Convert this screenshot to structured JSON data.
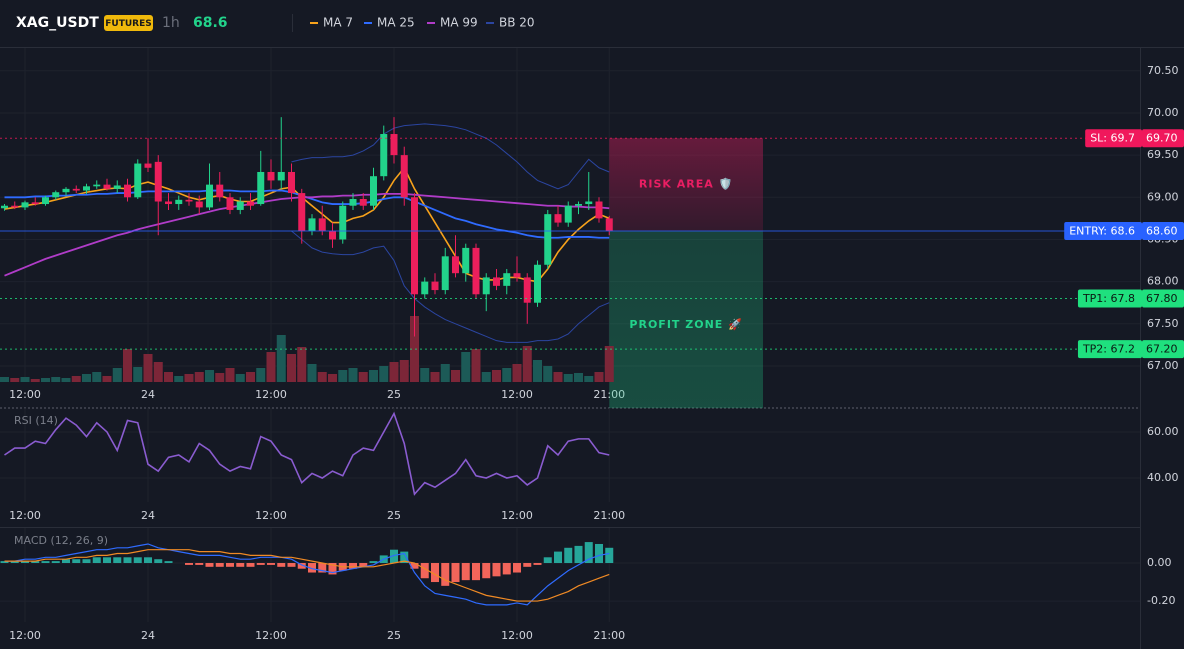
{
  "header": {
    "symbol": "XAG_USDT",
    "badge": "FUTURES",
    "interval": "1h",
    "price": 68.6
  },
  "chart_data": [
    {
      "type": "candlestick",
      "categories": [
        null,
        null,
        "12:00",
        null,
        null,
        null,
        null,
        null,
        null,
        null,
        null,
        null,
        null,
        null,
        "24",
        null,
        null,
        null,
        null,
        null,
        null,
        null,
        null,
        null,
        null,
        null,
        "12:00",
        null,
        null,
        null,
        null,
        null,
        null,
        null,
        null,
        null,
        null,
        null,
        "25",
        null,
        null,
        null,
        null,
        null,
        null,
        null,
        null,
        null,
        null,
        null,
        "12:00",
        null,
        null,
        null,
        null,
        null,
        null,
        null,
        null,
        "21:00"
      ],
      "open": [
        68.87,
        68.9,
        68.88,
        68.94,
        68.92,
        69.0,
        69.06,
        69.1,
        69.08,
        69.13,
        69.15,
        69.1,
        69.15,
        69.0,
        69.4,
        69.42,
        68.95,
        68.92,
        68.97,
        68.95,
        68.88,
        69.15,
        69.0,
        68.85,
        68.95,
        68.92,
        69.3,
        69.2,
        69.3,
        69.05,
        68.6,
        68.75,
        68.6,
        68.5,
        68.9,
        68.98,
        68.9,
        69.25,
        69.75,
        69.5,
        69.0,
        67.85,
        68.0,
        67.9,
        68.3,
        68.1,
        68.4,
        67.85,
        68.05,
        67.95,
        68.1,
        68.05,
        67.75,
        68.2,
        68.8,
        68.7,
        68.9,
        68.92,
        68.95,
        68.75
      ],
      "high": [
        68.92,
        68.95,
        68.96,
        69.0,
        69.02,
        69.08,
        69.12,
        69.14,
        69.16,
        69.2,
        69.22,
        69.2,
        69.22,
        69.45,
        69.7,
        69.5,
        69.05,
        69.02,
        69.05,
        69.02,
        69.4,
        69.3,
        69.05,
        69.0,
        69.05,
        69.55,
        69.45,
        69.95,
        69.4,
        69.1,
        68.8,
        68.9,
        68.7,
        68.95,
        69.05,
        69.05,
        69.35,
        69.85,
        69.95,
        69.6,
        69.05,
        68.05,
        68.1,
        68.4,
        68.55,
        68.45,
        68.45,
        68.1,
        68.15,
        68.15,
        68.3,
        68.1,
        68.25,
        68.85,
        68.9,
        68.95,
        68.95,
        69.3,
        69.0,
        68.78
      ],
      "low": [
        68.84,
        68.86,
        68.85,
        68.9,
        68.9,
        68.97,
        69.02,
        69.05,
        69.04,
        69.1,
        69.08,
        69.05,
        68.95,
        68.98,
        69.3,
        68.55,
        68.85,
        68.85,
        68.9,
        68.8,
        68.85,
        68.95,
        68.8,
        68.8,
        68.85,
        68.9,
        69.1,
        69.1,
        68.95,
        68.45,
        68.55,
        68.55,
        68.4,
        68.45,
        68.85,
        68.85,
        68.85,
        69.2,
        69.4,
        68.9,
        67.35,
        67.8,
        67.85,
        67.85,
        68.05,
        68.0,
        67.8,
        67.65,
        67.9,
        67.85,
        68.0,
        67.5,
        67.7,
        68.15,
        68.65,
        68.65,
        68.8,
        68.85,
        68.7,
        68.55
      ],
      "close": [
        68.9,
        68.88,
        68.94,
        68.92,
        69.0,
        69.06,
        69.1,
        69.08,
        69.13,
        69.15,
        69.1,
        69.14,
        69.0,
        69.4,
        69.35,
        68.95,
        68.92,
        68.97,
        68.95,
        68.88,
        69.15,
        69.0,
        68.85,
        68.95,
        68.9,
        69.3,
        69.2,
        69.3,
        69.05,
        68.6,
        68.75,
        68.6,
        68.5,
        68.9,
        68.98,
        68.9,
        69.25,
        69.75,
        69.5,
        69.0,
        67.85,
        68.0,
        67.9,
        68.3,
        68.1,
        68.4,
        67.85,
        68.05,
        67.95,
        68.1,
        68.05,
        67.75,
        68.2,
        68.8,
        68.7,
        68.9,
        68.92,
        68.95,
        68.75,
        68.6
      ],
      "up_color": "#22d38b",
      "down_color": "#ec1f5c",
      "volume": [
        5,
        4,
        5,
        3,
        4,
        5,
        4,
        6,
        8,
        10,
        6,
        14,
        33,
        15,
        28,
        20,
        10,
        6,
        8,
        10,
        12,
        9,
        14,
        8,
        10,
        14,
        30,
        47,
        28,
        35,
        18,
        10,
        8,
        12,
        14,
        10,
        12,
        16,
        20,
        22,
        66,
        14,
        10,
        18,
        12,
        30,
        33,
        10,
        12,
        14,
        18,
        36,
        22,
        16,
        10,
        8,
        9,
        6,
        10,
        36
      ],
      "volume_lim": [
        0,
        100
      ],
      "volume_up_color": "#1c5a57",
      "volume_down_color": "#7c2638",
      "series": [
        {
          "name": "MA 7",
          "color": "#f7a21b",
          "values": [
            68.86,
            68.88,
            68.9,
            68.92,
            68.94,
            68.97,
            69.0,
            69.03,
            69.06,
            69.08,
            69.1,
            69.11,
            69.1,
            69.15,
            69.18,
            69.14,
            69.1,
            69.05,
            69.0,
            68.97,
            69.0,
            69.02,
            68.98,
            68.95,
            68.95,
            69.0,
            69.05,
            69.1,
            69.12,
            69.0,
            68.9,
            68.8,
            68.7,
            68.7,
            68.75,
            68.78,
            68.85,
            69.0,
            69.2,
            69.35,
            69.1,
            68.9,
            68.7,
            68.5,
            68.3,
            68.1,
            68.05,
            68.02,
            68.02,
            68.05,
            68.05,
            68.02,
            68.0,
            68.15,
            68.35,
            68.5,
            68.62,
            68.72,
            68.8,
            68.75
          ]
        },
        {
          "name": "MA 25",
          "color": "#2f6bff",
          "values": [
            69,
            69,
            69,
            69.01,
            69.01,
            69.02,
            69.02,
            69.03,
            69.03,
            69.04,
            69.04,
            69.05,
            69.05,
            69.06,
            69.07,
            69.07,
            69.07,
            69.07,
            69.07,
            69.07,
            69.08,
            69.08,
            69.08,
            69.07,
            69.07,
            69.07,
            69.08,
            69.08,
            69.06,
            69.02,
            68.98,
            68.94,
            68.92,
            68.92,
            68.92,
            68.93,
            68.95,
            68.98,
            69,
            69,
            68.95,
            68.9,
            68.85,
            68.8,
            68.75,
            68.72,
            68.68,
            68.65,
            68.62,
            68.6,
            68.58,
            68.55,
            68.53,
            68.52,
            68.52,
            68.53,
            68.53,
            68.53,
            68.52,
            68.52
          ]
        },
        {
          "name": "MA 99",
          "color": "#b03cc8",
          "values": [
            68.07,
            68.12,
            68.17,
            68.22,
            68.27,
            68.31,
            68.35,
            68.39,
            68.43,
            68.47,
            68.51,
            68.55,
            68.58,
            68.62,
            68.65,
            68.68,
            68.71,
            68.74,
            68.77,
            68.8,
            68.83,
            68.86,
            68.88,
            68.9,
            68.92,
            68.94,
            68.96,
            68.98,
            68.99,
            69,
            69,
            69.01,
            69.01,
            69.02,
            69.02,
            69.03,
            69.03,
            69.04,
            69.04,
            69.04,
            69.03,
            69.02,
            69.01,
            69,
            68.99,
            68.98,
            68.97,
            68.96,
            68.95,
            68.94,
            68.93,
            68.92,
            68.91,
            68.9,
            68.9,
            68.89,
            68.89,
            68.88,
            68.88,
            68.87
          ]
        },
        {
          "name": "BB 20",
          "color": "#2b45a0",
          "upper": [
            null,
            null,
            null,
            null,
            null,
            null,
            null,
            null,
            null,
            null,
            null,
            null,
            null,
            null,
            null,
            null,
            null,
            null,
            null,
            null,
            null,
            null,
            null,
            null,
            null,
            null,
            null,
            null,
            69.42,
            69.45,
            69.47,
            69.47,
            69.48,
            69.48,
            69.5,
            69.55,
            69.62,
            69.75,
            69.82,
            69.85,
            69.86,
            69.87,
            69.86,
            69.85,
            69.83,
            69.8,
            69.75,
            69.7,
            69.62,
            69.52,
            69.42,
            69.3,
            69.2,
            69.15,
            69.1,
            69.15,
            69.3,
            69.45,
            69.35,
            69.3
          ],
          "lower": [
            null,
            null,
            null,
            null,
            null,
            null,
            null,
            null,
            null,
            null,
            null,
            null,
            null,
            null,
            null,
            null,
            null,
            null,
            null,
            null,
            null,
            null,
            null,
            null,
            null,
            null,
            null,
            null,
            68.6,
            68.5,
            68.4,
            68.35,
            68.33,
            68.32,
            68.32,
            68.35,
            68.4,
            68.42,
            68.25,
            67.95,
            67.8,
            67.7,
            67.62,
            67.55,
            67.5,
            67.45,
            67.4,
            67.35,
            67.3,
            67.28,
            67.28,
            67.28,
            67.3,
            67.3,
            67.32,
            67.38,
            67.5,
            67.6,
            67.7,
            67.75
          ]
        }
      ],
      "ylim": [
        66.81,
        70.77
      ],
      "yticks": [
        {
          "value": 67,
          "label": "67.00"
        },
        {
          "value": 67.5,
          "label": "67.50"
        },
        {
          "value": 68,
          "label": "68.00"
        },
        {
          "value": 68.5,
          "label": "68.50"
        },
        {
          "value": 69,
          "label": "69.00"
        },
        {
          "value": 69.5,
          "label": "69.50"
        },
        {
          "value": 70,
          "label": "70.00"
        },
        {
          "value": 70.5,
          "label": "70.50"
        }
      ],
      "grid": true,
      "zones": [
        {
          "label": "RISK AREA 🛡️",
          "from": 69.7,
          "to": 68.6,
          "x_from": 59,
          "x_to": 74,
          "color": "#e91e63"
        },
        {
          "label": "PROFIT ZONE 🚀",
          "from": 68.6,
          "to": 66.5,
          "x_from": 59,
          "x_to": 74,
          "color": "#22d38b"
        }
      ],
      "levels": [
        {
          "label": "SL: 69.7",
          "value": 69.7,
          "price_label": "69.70",
          "color": "#f0185c",
          "text_color": "#ffffff",
          "dashed": true
        },
        {
          "label": "ENTRY: 68.6",
          "value": 68.6,
          "price_label": "68.60",
          "color": "#2962ff",
          "text_color": "#ffffff",
          "dashed": false
        },
        {
          "label": "TP1: 67.8",
          "value": 67.8,
          "price_label": "67.80",
          "color": "#1fe07e",
          "text_color": "#0b1a12",
          "dashed": true
        },
        {
          "label": "TP2: 67.2",
          "value": 67.2,
          "price_label": "67.20",
          "color": "#1fe07e",
          "text_color": "#0b1a12",
          "dashed": true
        }
      ]
    },
    {
      "type": "line",
      "title": "RSI (14)",
      "color": "#8a5cd0",
      "values": [
        50,
        53,
        53,
        56,
        55,
        61,
        66,
        63,
        58,
        64,
        60,
        52,
        65,
        64,
        46,
        43,
        49,
        50,
        47,
        55,
        52,
        46,
        43,
        45,
        44,
        58,
        56,
        50,
        48,
        38,
        42,
        40,
        43,
        41,
        50,
        53,
        52,
        60,
        68,
        55,
        33,
        38,
        36,
        39,
        42,
        48,
        41,
        40,
        42,
        40,
        41,
        37,
        40,
        54,
        50,
        56,
        57,
        57,
        51,
        50
      ],
      "ylim": [
        29.6,
        70.4
      ],
      "yticks": [
        {
          "value": 60,
          "label": "60.00"
        },
        {
          "value": 40,
          "label": "40.00"
        }
      ],
      "grid": true
    },
    {
      "type": "macd",
      "title": "MACD (12, 26, 9)",
      "series": [
        {
          "color": "#2f6bff",
          "values": [
            0.01,
            0.01,
            0.02,
            0.02,
            0.03,
            0.03,
            0.04,
            0.05,
            0.06,
            0.07,
            0.07,
            0.08,
            0.08,
            0.09,
            0.1,
            0.08,
            0.07,
            0.06,
            0.05,
            0.04,
            0.04,
            0.04,
            0.03,
            0.02,
            0.02,
            0.03,
            0.03,
            0.03,
            0.02,
            -0.01,
            -0.03,
            -0.04,
            -0.05,
            -0.04,
            -0.03,
            -0.02,
            -0.01,
            0.02,
            0.04,
            0.05,
            -0.05,
            -0.12,
            -0.16,
            -0.17,
            -0.18,
            -0.19,
            -0.21,
            -0.22,
            -0.22,
            -0.22,
            -0.21,
            -0.22,
            -0.17,
            -0.12,
            -0.08,
            -0.04,
            -0.01,
            0.02,
            0.04,
            0.05
          ]
        },
        {
          "color": "#f08a24",
          "values": [
            0.01,
            0.01,
            0.01,
            0.01,
            0.02,
            0.02,
            0.02,
            0.03,
            0.03,
            0.04,
            0.04,
            0.05,
            0.05,
            0.06,
            0.07,
            0.07,
            0.07,
            0.07,
            0.07,
            0.06,
            0.06,
            0.06,
            0.05,
            0.05,
            0.04,
            0.04,
            0.04,
            0.03,
            0.03,
            0.02,
            0.01,
            0,
            -0.01,
            -0.02,
            -0.02,
            -0.02,
            -0.02,
            -0.01,
            0,
            0.01,
            0,
            -0.03,
            -0.06,
            -0.09,
            -0.11,
            -0.13,
            -0.15,
            -0.17,
            -0.18,
            -0.19,
            -0.2,
            -0.2,
            -0.2,
            -0.19,
            -0.17,
            -0.15,
            -0.12,
            -0.1,
            -0.08,
            -0.06
          ]
        }
      ],
      "histogram": [
        0.01,
        0.01,
        0.01,
        0.01,
        0.01,
        0.01,
        0.02,
        0.02,
        0.02,
        0.03,
        0.03,
        0.03,
        0.03,
        0.03,
        0.03,
        0.02,
        0.01,
        0,
        -0.01,
        -0.01,
        -0.02,
        -0.02,
        -0.02,
        -0.02,
        -0.02,
        -0.01,
        -0.01,
        -0.02,
        -0.02,
        -0.03,
        -0.05,
        -0.05,
        -0.06,
        -0.04,
        -0.03,
        -0.02,
        0.01,
        0.04,
        0.07,
        0.06,
        -0.03,
        -0.08,
        -0.1,
        -0.12,
        -0.1,
        -0.09,
        -0.09,
        -0.08,
        -0.07,
        -0.06,
        -0.05,
        -0.02,
        -0.01,
        0.03,
        0.06,
        0.08,
        0.09,
        0.11,
        0.1,
        0.08
      ],
      "histogram_up_color": "#26a69a",
      "histogram_down_color": "#f2655a",
      "ylim": [
        -0.31,
        0.184
      ],
      "yticks": [
        {
          "value": 0,
          "label": "0.00"
        },
        {
          "value": -0.2,
          "label": "-0.20"
        }
      ],
      "grid": true
    }
  ]
}
